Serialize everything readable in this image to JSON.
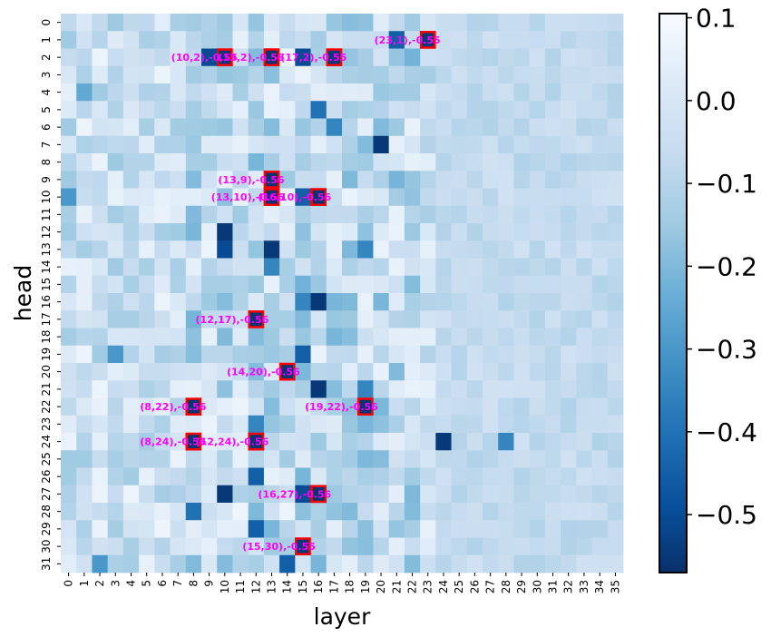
{
  "chart_data": {
    "type": "heatmap",
    "title": "",
    "xlabel": "layer",
    "ylabel": "head",
    "n_layers": 36,
    "n_heads": 32,
    "colormap": "Blues_r",
    "vmin": -0.57,
    "vmax": 0.105,
    "colorbar_ticks": [
      0.1,
      0.0,
      -0.1,
      -0.2,
      -0.3,
      -0.4,
      -0.5
    ],
    "colorbar_tick_labels": [
      "0.1",
      "0.0",
      "−0.1",
      "−0.2",
      "−0.3",
      "−0.4",
      "−0.5"
    ],
    "highlight_color": "#ff0000",
    "annotation_color": "#ff00ff",
    "highlights": [
      {
        "layer": 23,
        "head": 1,
        "value": -0.55,
        "label": "(23,1),-0.55"
      },
      {
        "layer": 10,
        "head": 2,
        "value": -0.55,
        "label": "(10,2),-0.55"
      },
      {
        "layer": 13,
        "head": 2,
        "value": -0.56,
        "label": "(13,2),-0.56"
      },
      {
        "layer": 17,
        "head": 2,
        "value": -0.55,
        "label": "(17,2),-0.55"
      },
      {
        "layer": 13,
        "head": 9,
        "value": -0.56,
        "label": "(13,9),-0.56"
      },
      {
        "layer": 13,
        "head": 10,
        "value": -0.56,
        "label": "(13,10),-0.56"
      },
      {
        "layer": 16,
        "head": 10,
        "value": -0.56,
        "label": "(16,10),-0.56"
      },
      {
        "layer": 12,
        "head": 17,
        "value": -0.56,
        "label": "(12,17),-0.56"
      },
      {
        "layer": 14,
        "head": 20,
        "value": -0.56,
        "label": "(14,20),-0.56"
      },
      {
        "layer": 8,
        "head": 22,
        "value": -0.56,
        "label": "(8,22),-0.56"
      },
      {
        "layer": 19,
        "head": 22,
        "value": -0.56,
        "label": "(19,22),-0.56"
      },
      {
        "layer": 8,
        "head": 24,
        "value": -0.56,
        "label": "(8,24),-0.56"
      },
      {
        "layer": 12,
        "head": 24,
        "value": -0.56,
        "label": "(12,24),-0.56"
      },
      {
        "layer": 16,
        "head": 27,
        "value": -0.56,
        "label": "(16,27),-0.56"
      },
      {
        "layer": 15,
        "head": 30,
        "value": -0.55,
        "label": "(15,30),-0.55"
      }
    ],
    "dark_cells": [
      {
        "layer": 9,
        "head": 2,
        "value": -0.5
      },
      {
        "layer": 15,
        "head": 2,
        "value": -0.5
      },
      {
        "layer": 16,
        "head": 5,
        "value": -0.4
      },
      {
        "layer": 17,
        "head": 6,
        "value": -0.35
      },
      {
        "layer": 20,
        "head": 7,
        "value": -0.55
      },
      {
        "layer": 21,
        "head": 1,
        "value": -0.45
      },
      {
        "layer": 15,
        "head": 10,
        "value": -0.45
      },
      {
        "layer": 10,
        "head": 12,
        "value": -0.55
      },
      {
        "layer": 10,
        "head": 13,
        "value": -0.5
      },
      {
        "layer": 13,
        "head": 13,
        "value": -0.55
      },
      {
        "layer": 13,
        "head": 14,
        "value": -0.35
      },
      {
        "layer": 19,
        "head": 13,
        "value": -0.35
      },
      {
        "layer": 16,
        "head": 16,
        "value": -0.55
      },
      {
        "layer": 15,
        "head": 16,
        "value": -0.35
      },
      {
        "layer": 15,
        "head": 19,
        "value": -0.45
      },
      {
        "layer": 16,
        "head": 21,
        "value": -0.55
      },
      {
        "layer": 19,
        "head": 21,
        "value": -0.35
      },
      {
        "layer": 12,
        "head": 23,
        "value": -0.35
      },
      {
        "layer": 24,
        "head": 24,
        "value": -0.55
      },
      {
        "layer": 28,
        "head": 24,
        "value": -0.35
      },
      {
        "layer": 12,
        "head": 26,
        "value": -0.45
      },
      {
        "layer": 10,
        "head": 27,
        "value": -0.55
      },
      {
        "layer": 15,
        "head": 27,
        "value": -0.5
      },
      {
        "layer": 8,
        "head": 28,
        "value": -0.4
      },
      {
        "layer": 12,
        "head": 29,
        "value": -0.45
      },
      {
        "layer": 14,
        "head": 31,
        "value": -0.45
      },
      {
        "layer": 2,
        "head": 31,
        "value": -0.3
      },
      {
        "layer": 0,
        "head": 10,
        "value": -0.3
      },
      {
        "layer": 3,
        "head": 19,
        "value": -0.3
      },
      {
        "layer": 1,
        "head": 4,
        "value": -0.25
      }
    ],
    "medium_layers": [
      8,
      10,
      12,
      13,
      15,
      16,
      17,
      18,
      19,
      20,
      21,
      22
    ],
    "light_layers": [
      24,
      25,
      26,
      27,
      28,
      29,
      30,
      31,
      32,
      33,
      34,
      35
    ]
  }
}
